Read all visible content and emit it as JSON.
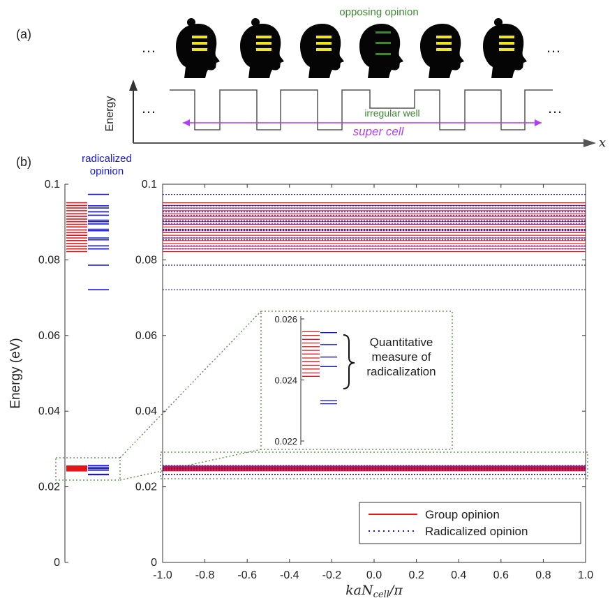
{
  "panel_a": {
    "label": "(a)",
    "ellipsis": "…",
    "y_axis_label": "Energy",
    "x_axis_label": "x",
    "opposing_label": "opposing opinion",
    "irregular_label": "irregular well",
    "supercell_label": "super cell",
    "colors": {
      "group_bars": "#f2e51d",
      "opposing_bars": "#3c8a2e",
      "supercell": "#b13cff",
      "potential": "#555555"
    }
  },
  "panel_b": {
    "label": "(b)",
    "radicalized_label_line1": "radicalized",
    "radicalized_label_line2": "opinion",
    "inset": {
      "annotation_lines": [
        "Quantitative",
        "measure of",
        "radicalization"
      ],
      "ylim": [
        0.022,
        0.026
      ],
      "yticks": [
        "0.026",
        "0.024",
        "0.022"
      ],
      "group_levels": [
        0.02412,
        0.02423,
        0.02436,
        0.02448,
        0.0246,
        0.02472,
        0.02485,
        0.02497,
        0.02509,
        0.02521,
        0.02533,
        0.02546,
        0.02558
      ],
      "radicalized_levels": [
        0.02322,
        0.02332,
        0.02444,
        0.02475,
        0.02516,
        0.02555
      ]
    },
    "legend": {
      "position": "bottom-right",
      "entries": [
        "Group opinion",
        "Radicalized opinion"
      ]
    }
  },
  "chart_data": {
    "type": "line",
    "title": "",
    "xlabel": "kaN_cell/π",
    "xlabel_display": {
      "base": "kaN",
      "sub": "cell",
      "tail": "/π"
    },
    "ylabel": "Energy (eV)",
    "xlim": [
      -1.0,
      1.0
    ],
    "ylim": [
      0,
      0.1
    ],
    "xticks": [
      "-1.0",
      "-0.8",
      "-0.6",
      "-0.4",
      "-0.2",
      "0.0",
      "0.2",
      "0.4",
      "0.6",
      "0.8",
      "1.0"
    ],
    "yticks": [
      "0",
      "0.02",
      "0.04",
      "0.06",
      "0.08",
      "0.1"
    ],
    "grid": false,
    "legend": "bottom-right",
    "series": [
      {
        "name": "Group opinion",
        "color": "#e8141a",
        "style": "solid",
        "levels": [
          0.0822,
          0.0829,
          0.0836,
          0.0843,
          0.0851,
          0.0858,
          0.0865,
          0.0872,
          0.0879,
          0.0887,
          0.0894,
          0.0901,
          0.0908,
          0.0915,
          0.0922,
          0.093,
          0.0937,
          0.0944,
          0.0951,
          0.0242,
          0.0244,
          0.0245,
          0.0246,
          0.0248,
          0.0249,
          0.025,
          0.0252,
          0.0253,
          0.0254,
          0.0255
        ]
      },
      {
        "name": "Radicalized opinion",
        "color": "#1414e6",
        "style": "dotted",
        "levels": [
          0.0721,
          0.0786,
          0.0829,
          0.0837,
          0.0853,
          0.0858,
          0.0877,
          0.0881,
          0.0895,
          0.0901,
          0.0905,
          0.0918,
          0.0927,
          0.0937,
          0.0943,
          0.0973,
          0.0232,
          0.0233,
          0.0244,
          0.0248,
          0.0252,
          0.0256
        ]
      }
    ]
  }
}
